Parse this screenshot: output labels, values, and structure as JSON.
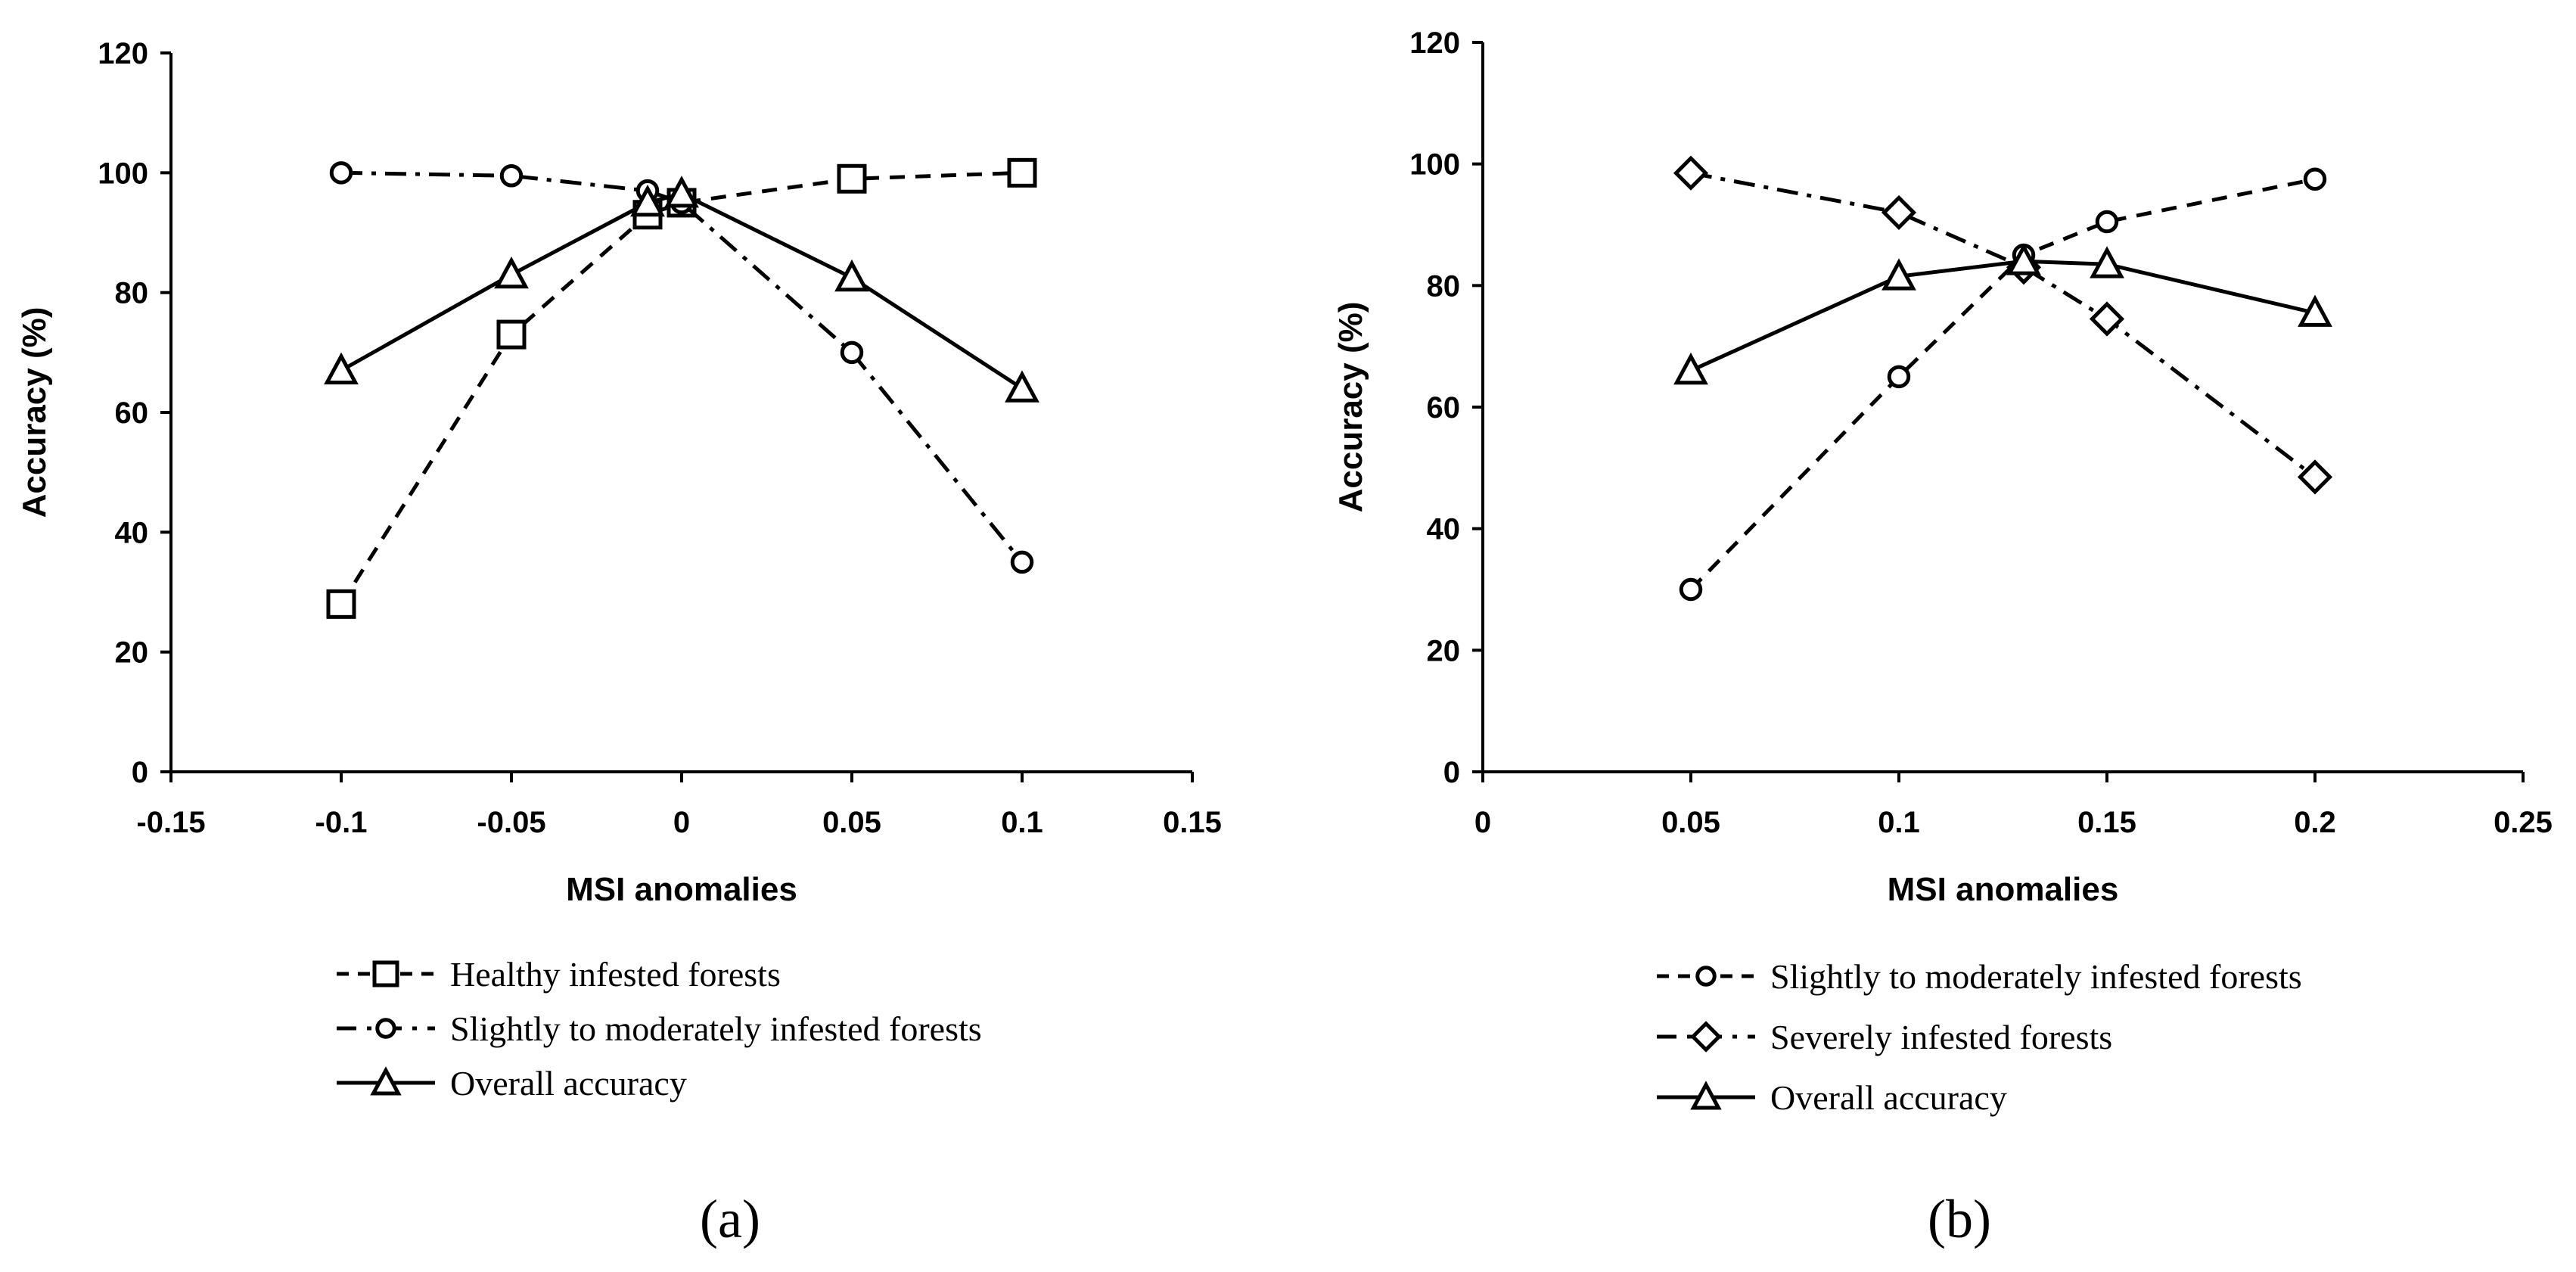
{
  "chart_data": [
    {
      "type": "line",
      "panel_label": "(a)",
      "xlabel": "MSI anomalies",
      "ylabel": "Accuracy (%)",
      "xlim": [
        -0.15,
        0.15
      ],
      "ylim": [
        0,
        120
      ],
      "xticks": [
        -0.15,
        -0.1,
        -0.05,
        0,
        0.05,
        0.1,
        0.15
      ],
      "xtick_labels": [
        "-0.15",
        "-0.1",
        "-0.05",
        "0",
        "0.05",
        "0.1",
        "0.15"
      ],
      "yticks": [
        0,
        20,
        40,
        60,
        80,
        100,
        120
      ],
      "ytick_labels": [
        "0",
        "20",
        "40",
        "60",
        "80",
        "100",
        "120"
      ],
      "legend_position": "bottom",
      "series": [
        {
          "name": "Healthy infested forests",
          "marker": "square",
          "dash": "dashed",
          "x": [
            -0.1,
            -0.05,
            -0.01,
            0,
            0.05,
            0.1
          ],
          "y": [
            28,
            73,
            93,
            95,
            99,
            100
          ]
        },
        {
          "name": "Slightly to moderately infested forests",
          "marker": "circle",
          "dash": "dashdot",
          "x": [
            -0.1,
            -0.05,
            -0.01,
            0,
            0.05,
            0.1
          ],
          "y": [
            100,
            99.5,
            97,
            95,
            70,
            35
          ]
        },
        {
          "name": "Overall accuracy",
          "marker": "triangle",
          "dash": "solid",
          "x": [
            -0.1,
            -0.05,
            -0.01,
            0,
            0.05,
            0.1
          ],
          "y": [
            67,
            83,
            95,
            96.5,
            82.5,
            64
          ]
        }
      ]
    },
    {
      "type": "line",
      "panel_label": "(b)",
      "xlabel": "MSI anomalies",
      "ylabel": "Accuracy (%)",
      "xlim": [
        0,
        0.25
      ],
      "ylim": [
        0,
        120
      ],
      "xticks": [
        0,
        0.05,
        0.1,
        0.15,
        0.2,
        0.25
      ],
      "xtick_labels": [
        "0",
        "0.05",
        "0.1",
        "0.15",
        "0.2",
        "0.25"
      ],
      "yticks": [
        0,
        20,
        40,
        60,
        80,
        100,
        120
      ],
      "ytick_labels": [
        "0",
        "20",
        "40",
        "60",
        "80",
        "100",
        "120"
      ],
      "legend_position": "bottom",
      "series": [
        {
          "name": "Slightly to moderately infested forests",
          "marker": "circle",
          "dash": "dashed",
          "x": [
            0.05,
            0.1,
            0.13,
            0.15,
            0.2
          ],
          "y": [
            30,
            65,
            85,
            90.5,
            97.5
          ]
        },
        {
          "name": "Severely infested forests",
          "marker": "diamond",
          "dash": "dashdot",
          "x": [
            0.05,
            0.1,
            0.13,
            0.15,
            0.2
          ],
          "y": [
            98.5,
            92,
            83,
            74.5,
            48.5
          ]
        },
        {
          "name": "Overall accuracy",
          "marker": "triangle",
          "dash": "solid",
          "x": [
            0.05,
            0.1,
            0.13,
            0.15,
            0.2
          ],
          "y": [
            66,
            81.5,
            84,
            83.5,
            75.5
          ]
        }
      ]
    }
  ]
}
